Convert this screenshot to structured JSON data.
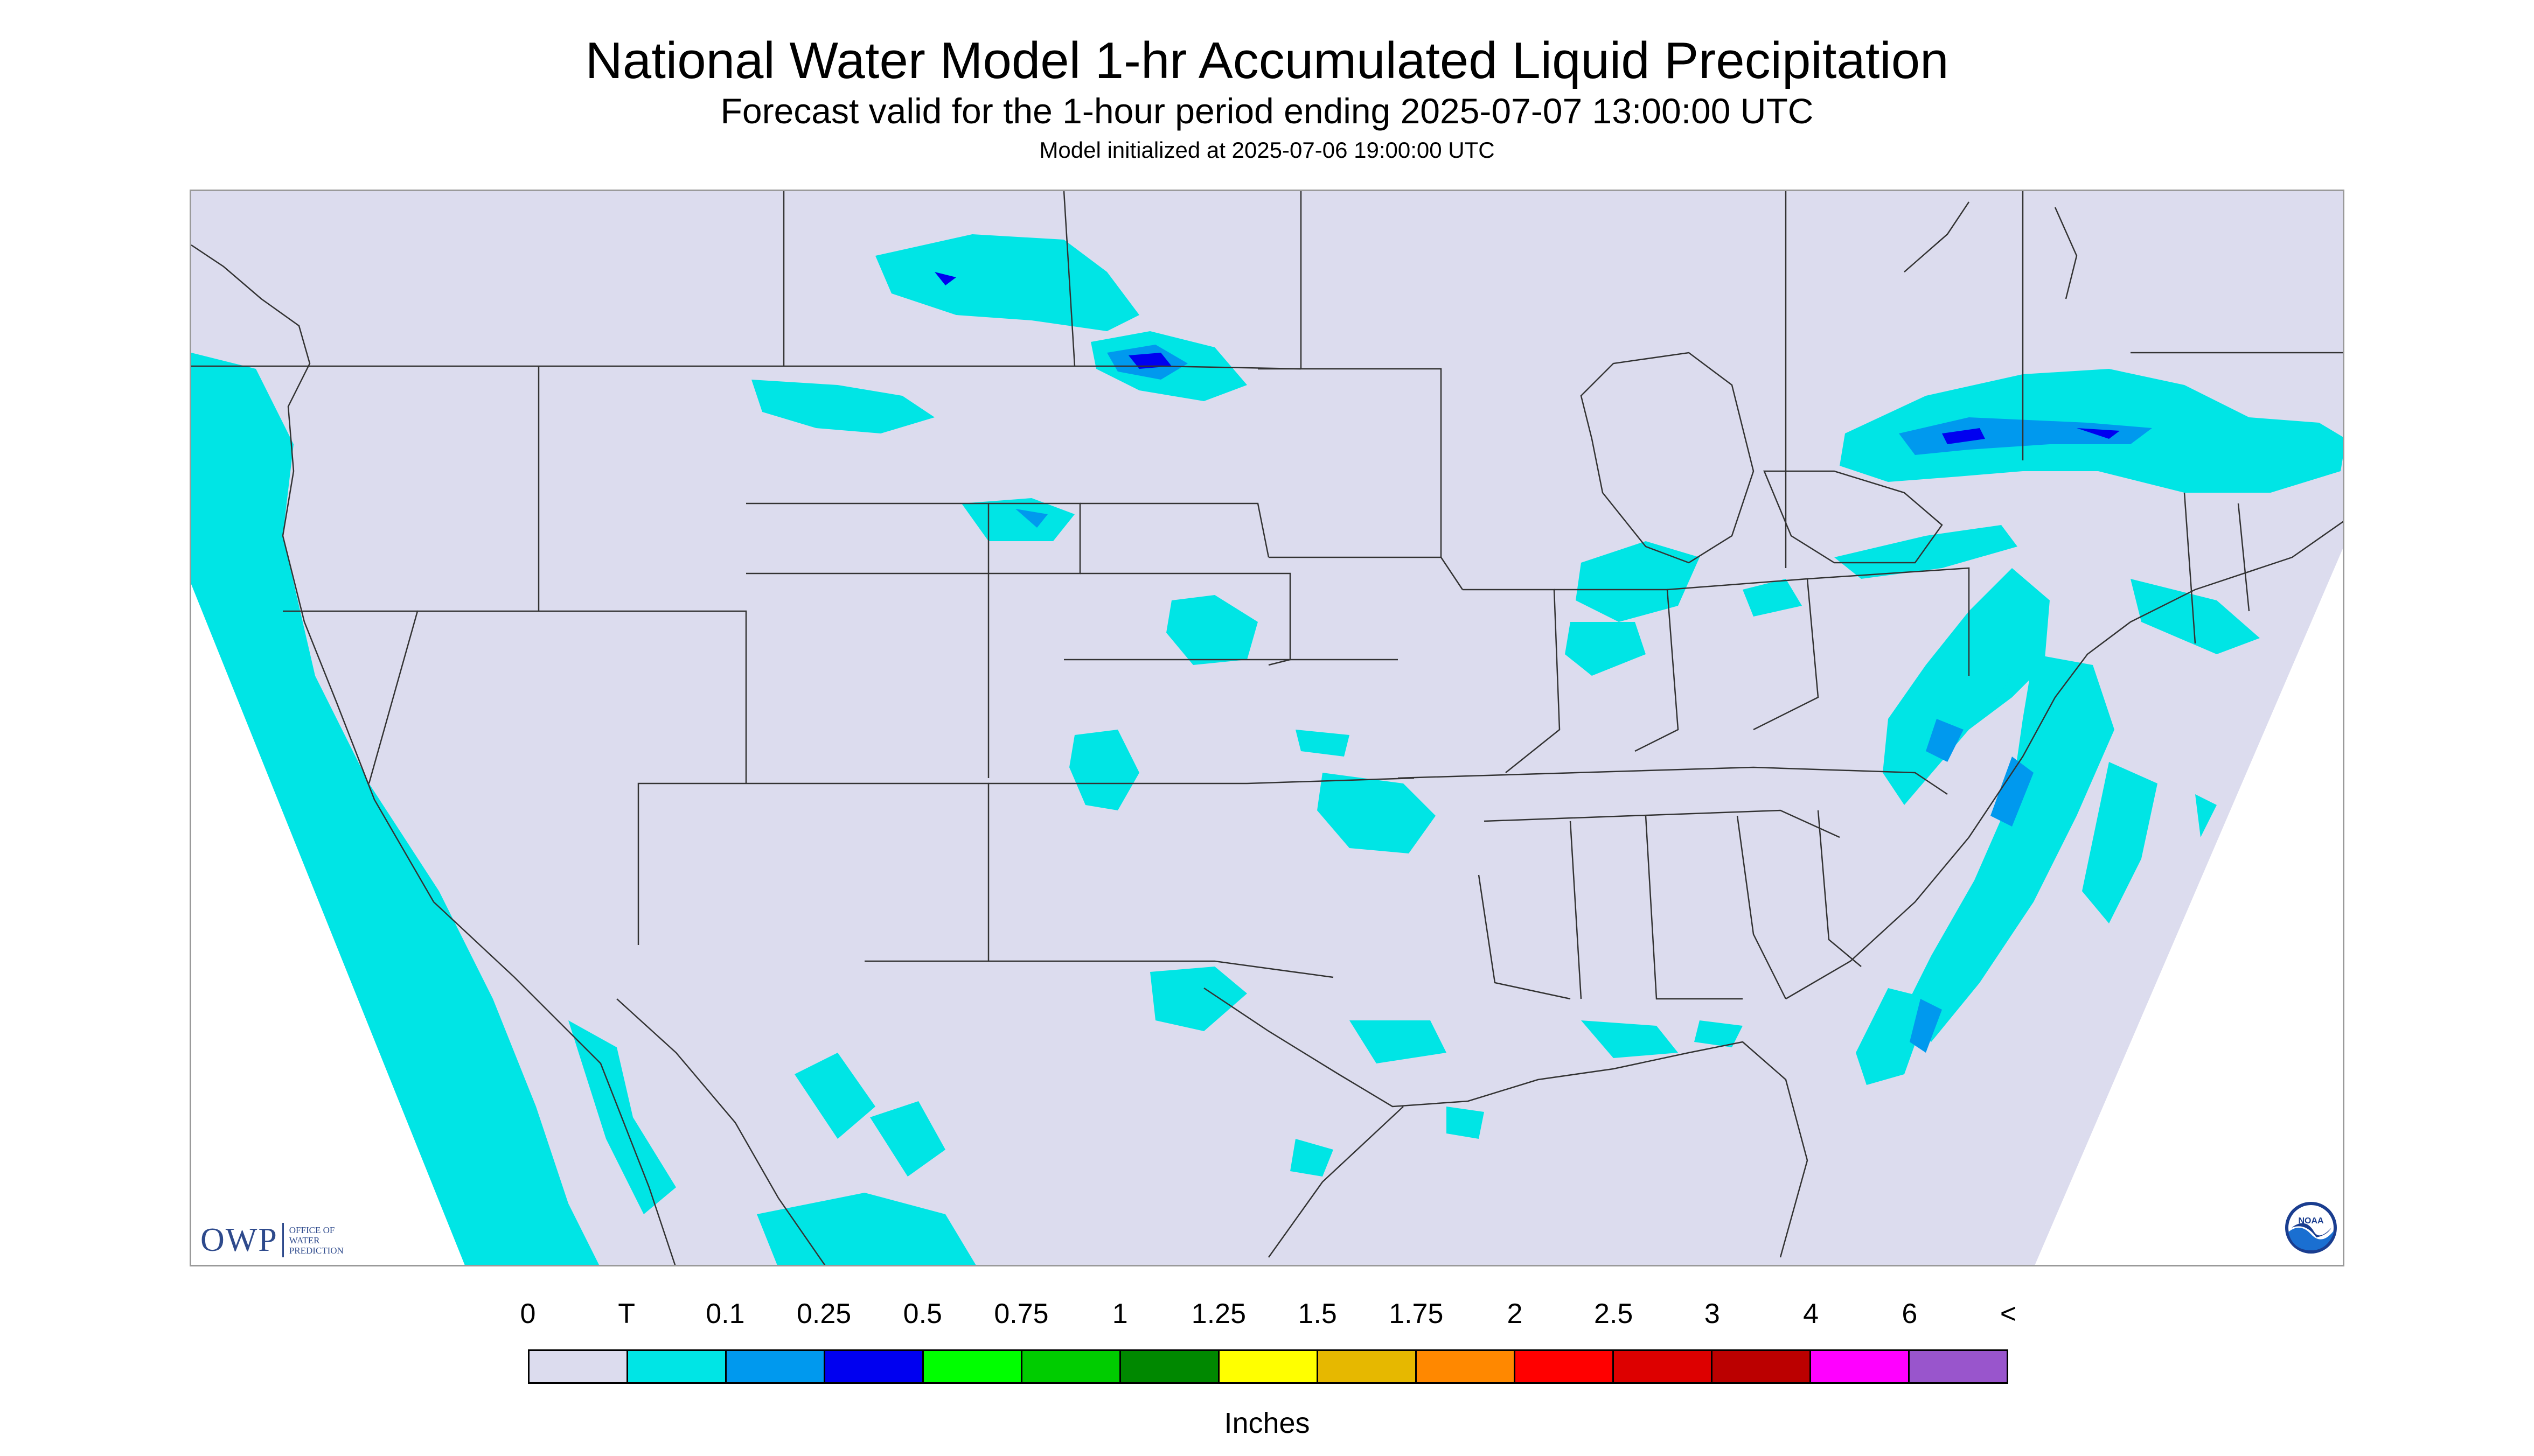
{
  "header": {
    "title": "National Water Model 1-hr Accumulated Liquid Precipitation",
    "subtitle": "Forecast valid for the 1-hour period ending 2025-07-07 13:00:00 UTC",
    "init": "Model initialized at 2025-07-06 19:00:00 UTC"
  },
  "logos": {
    "owp_letters": "OWP",
    "owp_sub1": "OFFICE OF",
    "owp_sub2": "WATER",
    "owp_sub3": "PREDICTION",
    "noaa": "NOAA"
  },
  "legend": {
    "labels": [
      "0",
      "T",
      "0.1",
      "0.25",
      "0.5",
      "0.75",
      "1",
      "1.25",
      "1.5",
      "1.75",
      "2",
      "2.5",
      "3",
      "4",
      "6",
      "<"
    ],
    "colors": [
      "#dcdcee",
      "#00e5e5",
      "#0099ee",
      "#0000f0",
      "#00ff00",
      "#00cc00",
      "#008800",
      "#ffff00",
      "#e6b800",
      "#ff8800",
      "#ff0000",
      "#dd0000",
      "#bb0000",
      "#ff00ff",
      "#9955cc"
    ],
    "units": "Inches"
  },
  "map_colors": {
    "domain_fill": "#dcdcee",
    "trace": "#00e5e5",
    "light": "#0099ee",
    "moderate": "#0000f0",
    "boundary": "#333333"
  }
}
